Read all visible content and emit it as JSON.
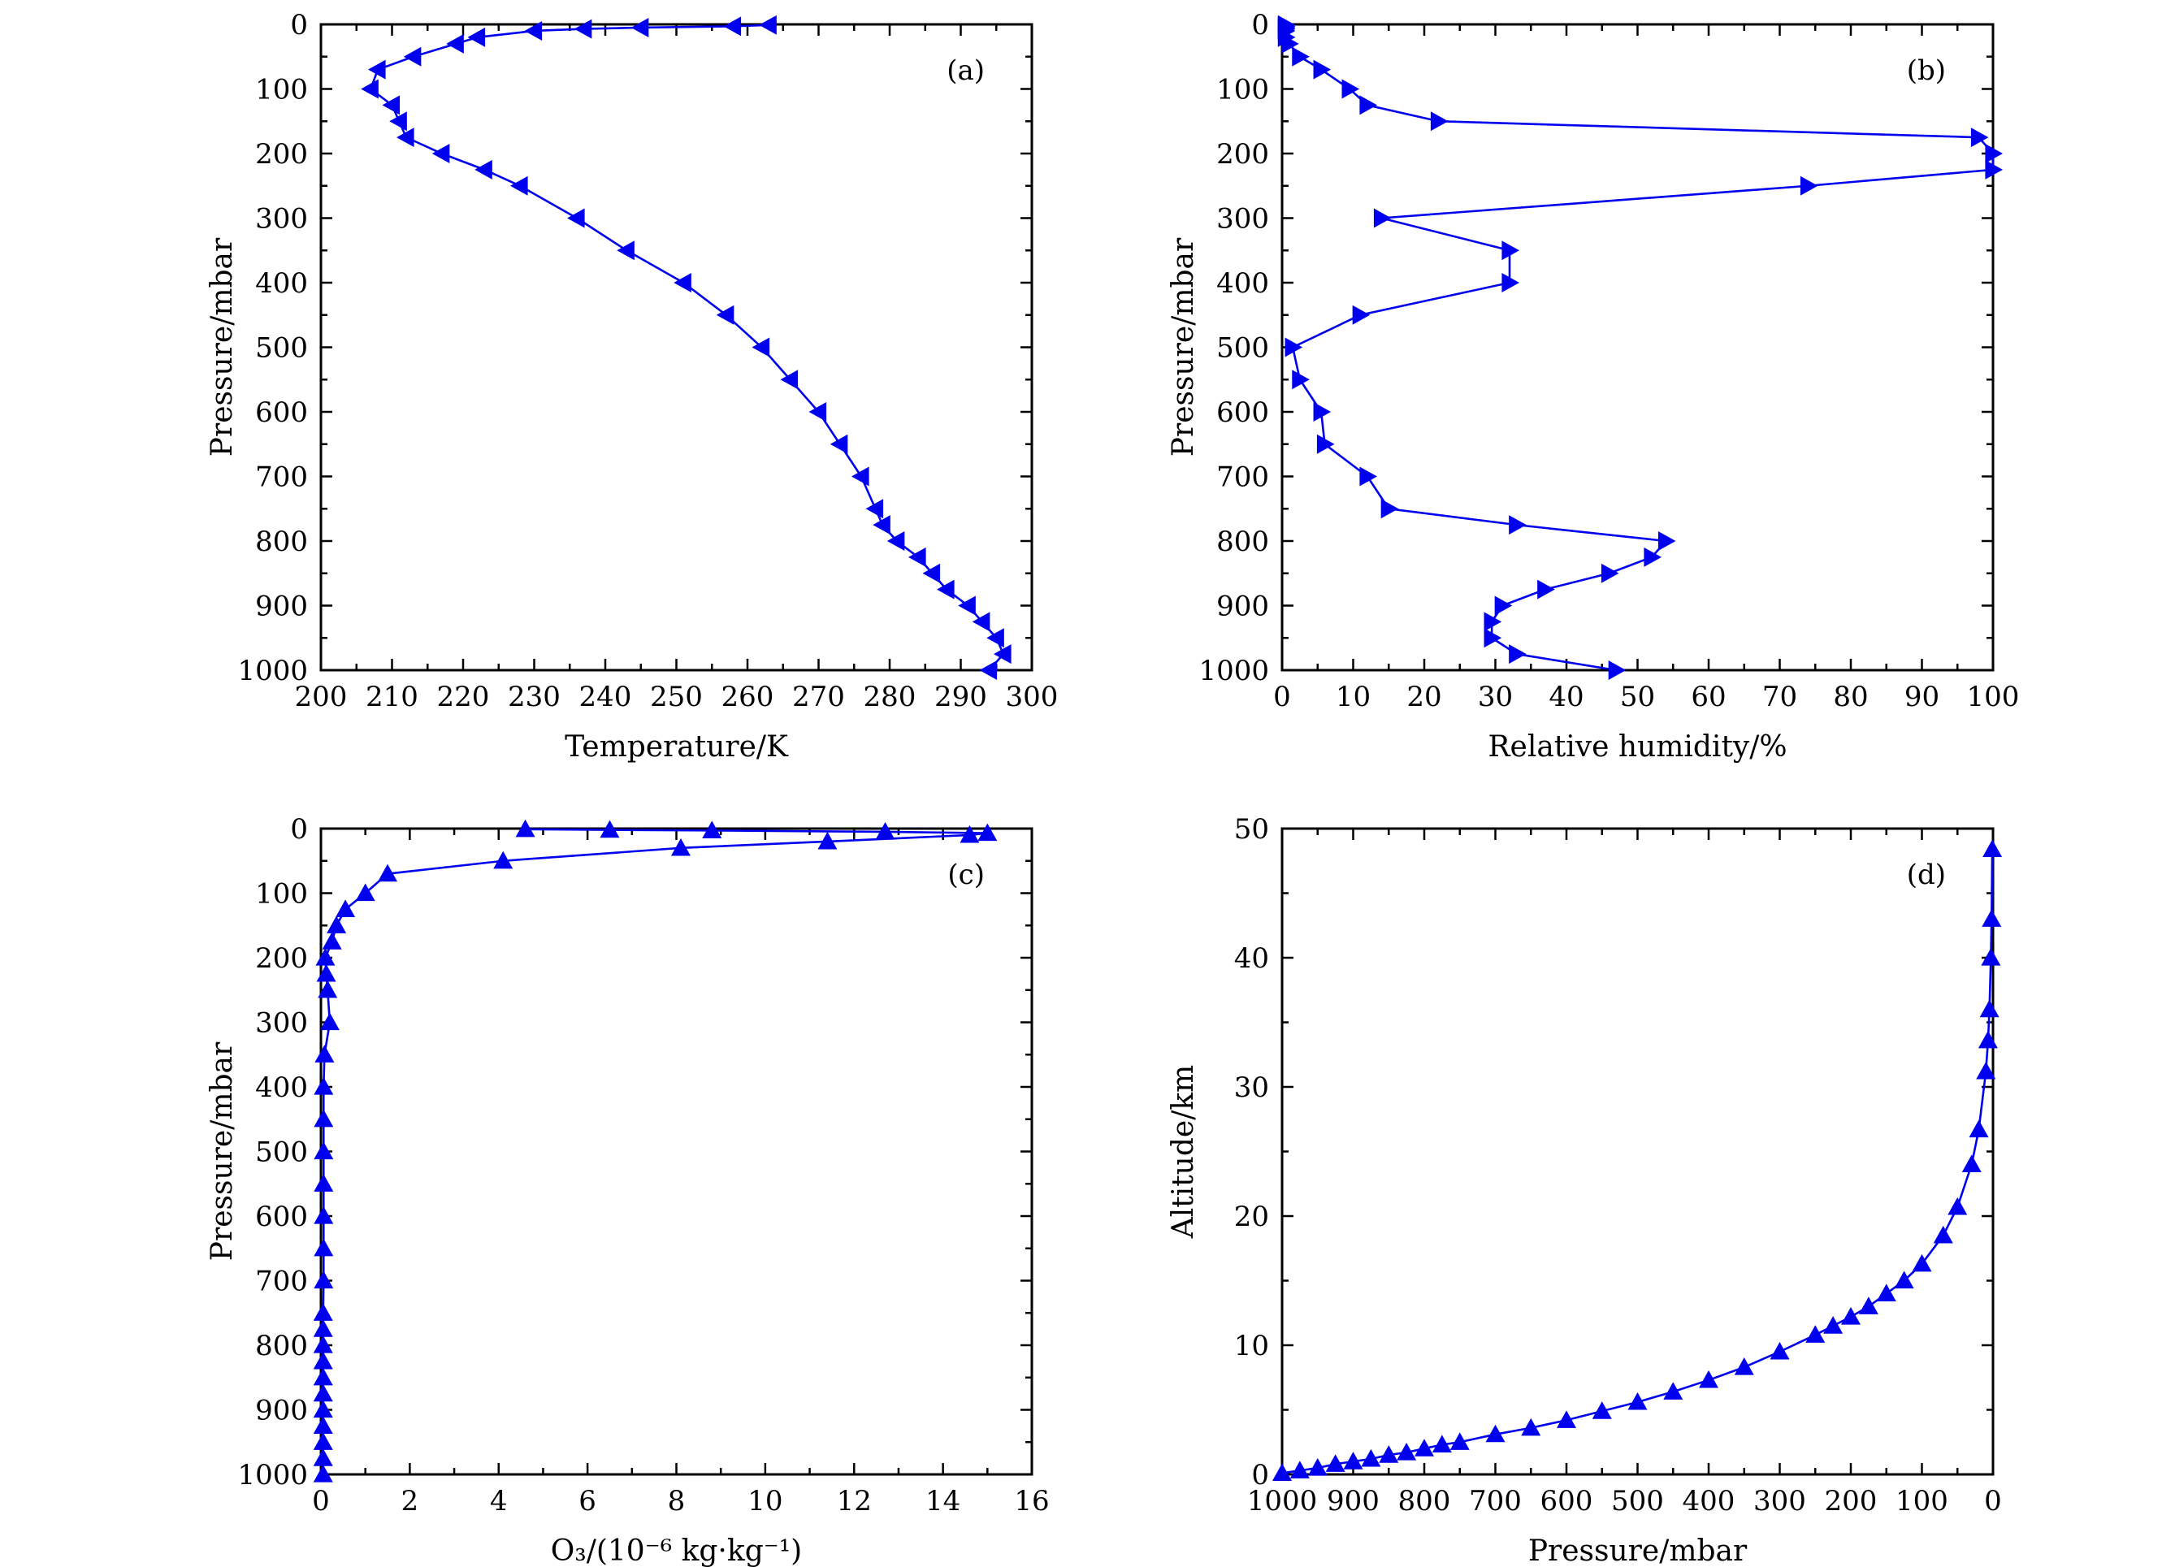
{
  "chart_data": [
    {
      "id": "a",
      "type": "line",
      "panel_label": "(a)",
      "xlabel": "Temperature/K",
      "ylabel": "Pressure/mbar",
      "xlim": [
        200,
        300
      ],
      "ylim": [
        0,
        1000
      ],
      "y_inverted": true,
      "xticks": [
        200,
        210,
        220,
        230,
        240,
        250,
        260,
        270,
        280,
        290,
        300
      ],
      "yticks": [
        0,
        100,
        200,
        300,
        400,
        500,
        600,
        700,
        800,
        900,
        1000
      ],
      "marker": "triangle-left",
      "color": "#0000ee",
      "points": [
        [
          263,
          1
        ],
        [
          258,
          3
        ],
        [
          245,
          5
        ],
        [
          237,
          7
        ],
        [
          230,
          10
        ],
        [
          222,
          20
        ],
        [
          219,
          30
        ],
        [
          213,
          50
        ],
        [
          208,
          70
        ],
        [
          207,
          100
        ],
        [
          210,
          125
        ],
        [
          211,
          150
        ],
        [
          212,
          175
        ],
        [
          217,
          200
        ],
        [
          223,
          225
        ],
        [
          228,
          250
        ],
        [
          236,
          300
        ],
        [
          243,
          350
        ],
        [
          251,
          400
        ],
        [
          257,
          450
        ],
        [
          262,
          500
        ],
        [
          266,
          550
        ],
        [
          270,
          600
        ],
        [
          273,
          650
        ],
        [
          276,
          700
        ],
        [
          278,
          750
        ],
        [
          279,
          775
        ],
        [
          281,
          800
        ],
        [
          284,
          825
        ],
        [
          286,
          850
        ],
        [
          288,
          875
        ],
        [
          291,
          900
        ],
        [
          293,
          925
        ],
        [
          295,
          950
        ],
        [
          296,
          975
        ],
        [
          294,
          1000
        ]
      ]
    },
    {
      "id": "b",
      "type": "line",
      "panel_label": "(b)",
      "xlabel": "Relative humidity/%",
      "ylabel": "Pressure/mbar",
      "xlim": [
        0,
        100
      ],
      "ylim": [
        0,
        1000
      ],
      "y_inverted": true,
      "xticks": [
        0,
        10,
        20,
        30,
        40,
        50,
        60,
        70,
        80,
        90,
        100
      ],
      "yticks": [
        0,
        100,
        200,
        300,
        400,
        500,
        600,
        700,
        800,
        900,
        1000
      ],
      "marker": "triangle-right",
      "color": "#0000ee",
      "points": [
        [
          0.5,
          1
        ],
        [
          0.5,
          3
        ],
        [
          0.5,
          5
        ],
        [
          0.5,
          7
        ],
        [
          0.5,
          10
        ],
        [
          0.5,
          20
        ],
        [
          1,
          30
        ],
        [
          2.5,
          50
        ],
        [
          5.5,
          70
        ],
        [
          9.5,
          100
        ],
        [
          12,
          125
        ],
        [
          22,
          150
        ],
        [
          98,
          175
        ],
        [
          100,
          200
        ],
        [
          100,
          225
        ],
        [
          74,
          250
        ],
        [
          14,
          300
        ],
        [
          32,
          350
        ],
        [
          32,
          400
        ],
        [
          11,
          450
        ],
        [
          1.5,
          500
        ],
        [
          2.5,
          550
        ],
        [
          5.5,
          600
        ],
        [
          6,
          650
        ],
        [
          12,
          700
        ],
        [
          15,
          750
        ],
        [
          33,
          775
        ],
        [
          54,
          800
        ],
        [
          52,
          825
        ],
        [
          46,
          850
        ],
        [
          37,
          875
        ],
        [
          31,
          900
        ],
        [
          29.5,
          925
        ],
        [
          29.5,
          950
        ],
        [
          33,
          975
        ],
        [
          47,
          1000
        ]
      ]
    },
    {
      "id": "c",
      "type": "line",
      "panel_label": "(c)",
      "xlabel": "O₃/(10⁻⁶ kg·kg⁻¹)",
      "ylabel": "Pressure/mbar",
      "xlim": [
        0,
        16
      ],
      "ylim": [
        0,
        1000
      ],
      "y_inverted": true,
      "xticks": [
        0,
        2,
        4,
        6,
        8,
        10,
        12,
        14,
        16
      ],
      "yticks": [
        0,
        100,
        200,
        300,
        400,
        500,
        600,
        700,
        800,
        900,
        1000
      ],
      "marker": "triangle-up",
      "color": "#0000ee",
      "points": [
        [
          4.6,
          1
        ],
        [
          6.5,
          2
        ],
        [
          8.8,
          3
        ],
        [
          12.7,
          5
        ],
        [
          15,
          7
        ],
        [
          14.6,
          10
        ],
        [
          11.4,
          20
        ],
        [
          8.1,
          30
        ],
        [
          4.1,
          50
        ],
        [
          1.5,
          70
        ],
        [
          1,
          100
        ],
        [
          0.55,
          125
        ],
        [
          0.35,
          150
        ],
        [
          0.25,
          175
        ],
        [
          0.1,
          200
        ],
        [
          0.12,
          225
        ],
        [
          0.15,
          250
        ],
        [
          0.2,
          300
        ],
        [
          0.08,
          350
        ],
        [
          0.06,
          400
        ],
        [
          0.06,
          450
        ],
        [
          0.06,
          500
        ],
        [
          0.06,
          550
        ],
        [
          0.06,
          600
        ],
        [
          0.06,
          650
        ],
        [
          0.06,
          700
        ],
        [
          0.05,
          750
        ],
        [
          0.05,
          775
        ],
        [
          0.05,
          800
        ],
        [
          0.05,
          825
        ],
        [
          0.05,
          850
        ],
        [
          0.05,
          875
        ],
        [
          0.05,
          900
        ],
        [
          0.05,
          925
        ],
        [
          0.05,
          950
        ],
        [
          0.05,
          975
        ],
        [
          0.05,
          1000
        ]
      ]
    },
    {
      "id": "d",
      "type": "line",
      "panel_label": "(d)",
      "xlabel": "Pressure/mbar",
      "ylabel": "Altitude/km",
      "xlim": [
        1000,
        0
      ],
      "ylim": [
        0,
        50
      ],
      "x_inverted": true,
      "xticks": [
        1000,
        900,
        800,
        700,
        600,
        500,
        400,
        300,
        200,
        100,
        0
      ],
      "yticks": [
        0,
        10,
        20,
        30,
        40,
        50
      ],
      "marker": "triangle-up",
      "color": "#0000ee",
      "points": [
        [
          1000,
          0.1
        ],
        [
          975,
          0.3
        ],
        [
          950,
          0.5
        ],
        [
          925,
          0.8
        ],
        [
          900,
          1.0
        ],
        [
          875,
          1.2
        ],
        [
          850,
          1.5
        ],
        [
          825,
          1.7
        ],
        [
          800,
          2.0
        ],
        [
          775,
          2.3
        ],
        [
          750,
          2.5
        ],
        [
          700,
          3.1
        ],
        [
          650,
          3.6
        ],
        [
          600,
          4.2
        ],
        [
          550,
          4.9
        ],
        [
          500,
          5.6
        ],
        [
          450,
          6.4
        ],
        [
          400,
          7.3
        ],
        [
          350,
          8.3
        ],
        [
          300,
          9.5
        ],
        [
          250,
          10.8
        ],
        [
          225,
          11.5
        ],
        [
          200,
          12.2
        ],
        [
          175,
          13.0
        ],
        [
          150,
          14.0
        ],
        [
          125,
          15.0
        ],
        [
          100,
          16.3
        ],
        [
          70,
          18.5
        ],
        [
          50,
          20.7
        ],
        [
          30,
          24.0
        ],
        [
          20,
          26.7
        ],
        [
          10,
          31.2
        ],
        [
          7,
          33.6
        ],
        [
          5,
          36.0
        ],
        [
          3,
          40.0
        ],
        [
          2,
          43.0
        ],
        [
          1,
          48.4
        ]
      ]
    }
  ]
}
